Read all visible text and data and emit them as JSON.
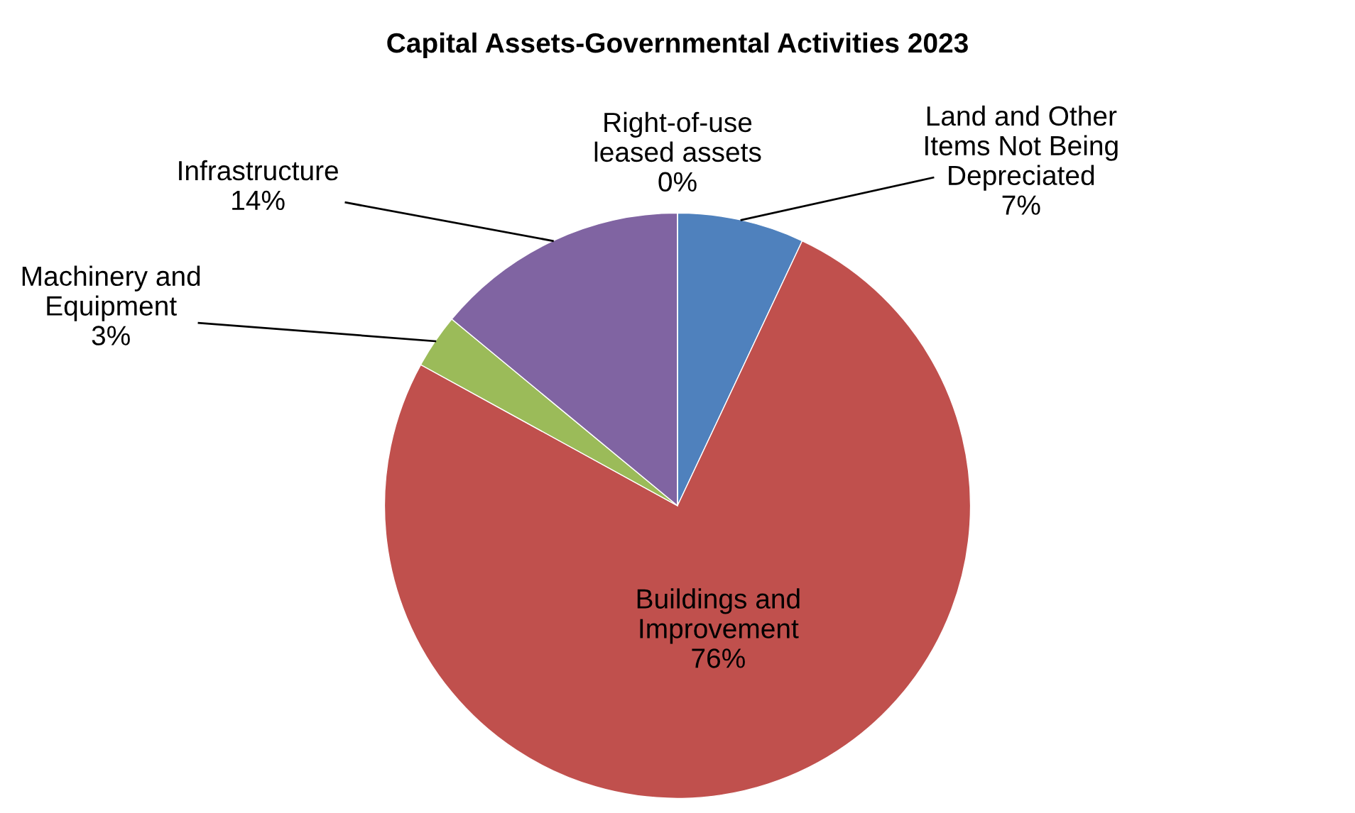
{
  "chart_data": {
    "type": "pie",
    "title": "Capital Assets-Governmental Activities 2023",
    "categories": [
      "Land and Other\nItems Not Being\nDepreciated",
      "Buildings and\nImprovement",
      "Machinery and\nEquipment",
      "Infrastructure",
      "Right-of-use\nleased assets"
    ],
    "values": [
      7,
      76,
      3,
      14,
      0
    ],
    "colors": [
      "#4f81bd",
      "#c0504d",
      "#9bbb59",
      "#8064a2",
      "#f79646"
    ],
    "value_labels": [
      "7%",
      "76%",
      "3%",
      "14%",
      "0%"
    ],
    "legend": false
  }
}
